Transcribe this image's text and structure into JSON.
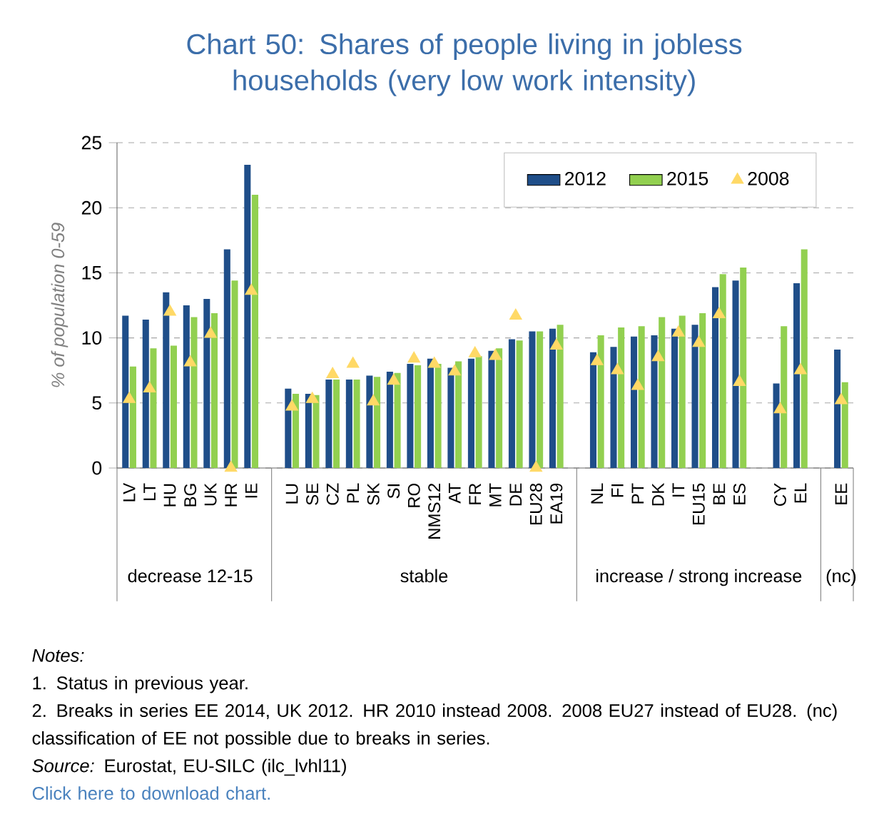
{
  "chart_data": {
    "type": "bar",
    "title": "Chart 50: Shares of people living in jobless households (very low work intensity)",
    "ylabel": "% of population 0-59",
    "categories": [
      "LV",
      "LT",
      "HU",
      "BG",
      "UK",
      "HR",
      "IE",
      null,
      "LU",
      "SE",
      "CZ",
      "PL",
      "SK",
      "SI",
      "RO",
      "NMS12",
      "AT",
      "FR",
      "MT",
      "DE",
      "EU28",
      "EA19",
      null,
      "NL",
      "FI",
      "PT",
      "DK",
      "IT",
      "EU15",
      "BE",
      "ES",
      null,
      "CY",
      "EL",
      null,
      "EE"
    ],
    "series": [
      {
        "name": "2012",
        "color": "#1f4e89",
        "values": [
          11.7,
          11.4,
          13.5,
          12.5,
          13.0,
          16.8,
          23.3,
          null,
          6.1,
          5.7,
          6.8,
          6.8,
          7.1,
          7.4,
          8.0,
          8.4,
          7.7,
          8.4,
          9.0,
          9.9,
          10.5,
          10.7,
          null,
          8.9,
          9.3,
          10.1,
          10.2,
          10.7,
          11.0,
          13.9,
          14.4,
          null,
          6.5,
          14.2,
          null,
          9.1
        ]
      },
      {
        "name": "2015",
        "color": "#92d050",
        "values": [
          7.8,
          9.2,
          9.4,
          11.6,
          11.9,
          14.4,
          21.0,
          null,
          5.7,
          5.6,
          6.8,
          6.8,
          7.0,
          7.3,
          7.9,
          8.0,
          8.2,
          8.6,
          9.2,
          9.8,
          10.5,
          11.0,
          null,
          10.2,
          10.8,
          10.9,
          11.6,
          11.7,
          11.9,
          14.9,
          15.4,
          null,
          10.9,
          16.8,
          null,
          6.6
        ]
      },
      {
        "name": "2008",
        "type": "scatter",
        "marker": "triangle",
        "color": "#ffd966",
        "values": [
          5.3,
          6.1,
          12.0,
          8.1,
          10.3,
          0,
          13.6,
          null,
          4.7,
          5.3,
          7.2,
          8.0,
          5.1,
          6.7,
          8.4,
          8.0,
          7.4,
          8.8,
          8.6,
          11.7,
          0,
          9.4,
          null,
          8.2,
          7.5,
          6.3,
          8.5,
          10.4,
          9.6,
          11.8,
          6.6,
          null,
          4.5,
          7.5,
          null,
          5.2
        ]
      }
    ],
    "ylim": [
      0,
      25
    ],
    "yticks": [
      0,
      5,
      10,
      15,
      20,
      25
    ],
    "grid": "y",
    "legend": "top right",
    "annotations": [
      "decrease 12-15",
      "stable",
      "increase / strong increase",
      "(nc)",
      "Notes:",
      "1. Status in previous year.",
      "2. Breaks in series EE 2014, UK 2012. HR 2010 instead 2008. 2008 EU27 instead of EU28. (nc) classification of EE not possible due to breaks in series.",
      "*Source:* Eurostat, EU-SILC (ilc_lvhl11)",
      "Click here to download chart."
    ]
  }
}
